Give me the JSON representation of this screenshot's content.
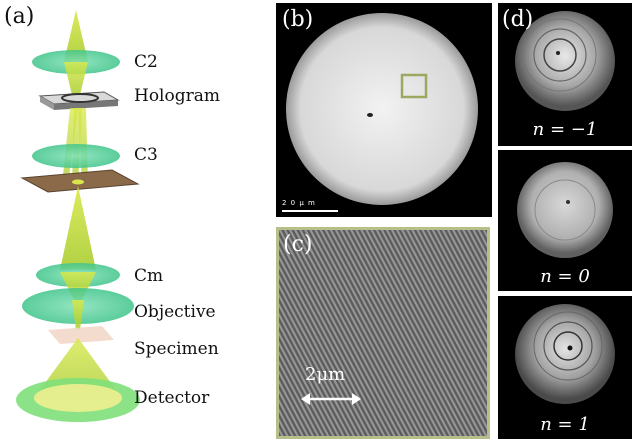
{
  "panel_a": {
    "label": "(a)",
    "components": [
      "C2",
      "Hologram",
      "C3",
      "Cm",
      "Objective",
      "Specimen",
      "Detector"
    ]
  },
  "panel_b": {
    "label": "(b)",
    "scalebar_text": "2 0   μ m"
  },
  "panel_c": {
    "label": "(c)",
    "scalebar_text": "2μm"
  },
  "panel_d": {
    "label": "(d)",
    "orders": [
      "n = −1",
      "n = 0",
      "n = 1"
    ]
  },
  "colors": {
    "lens_green": "#5ed3a0",
    "beam_yellow": "#c8e040",
    "crop_box": "#9ca860"
  }
}
